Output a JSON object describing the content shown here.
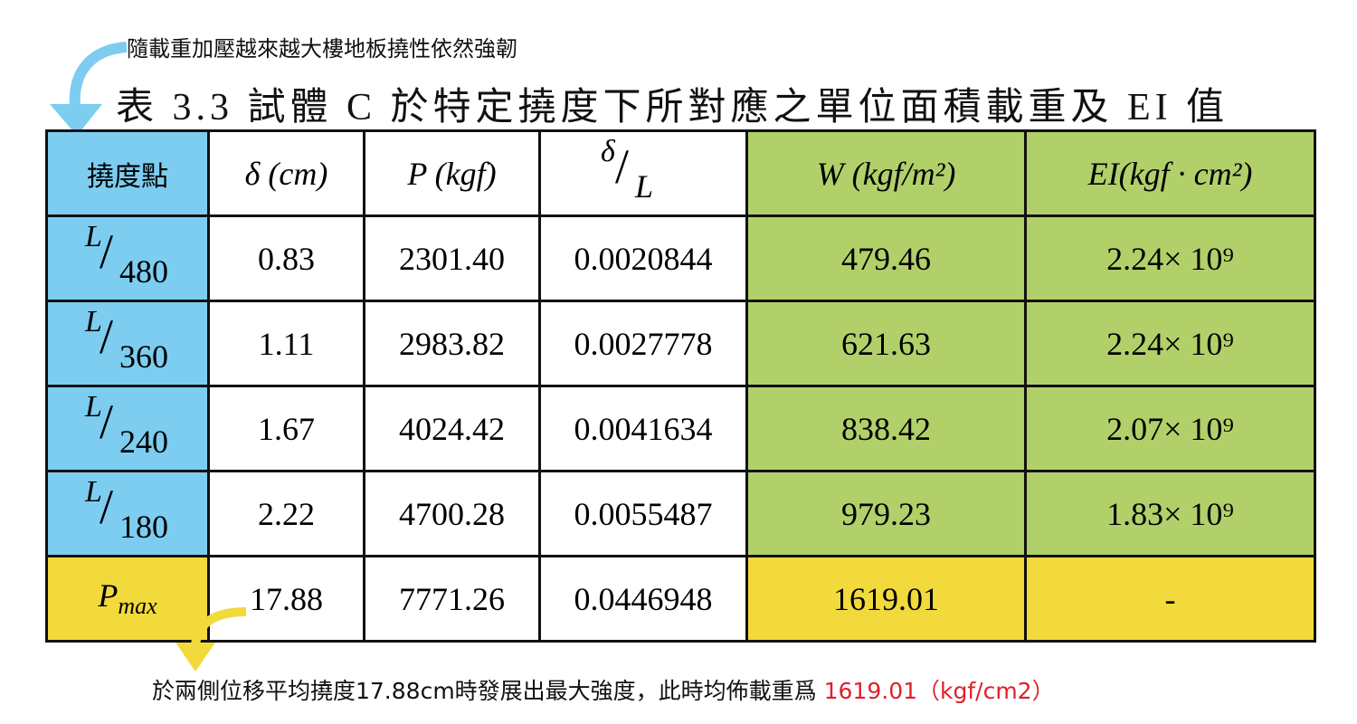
{
  "annotation_top": "隨載重加壓越來越大樓地板撓性依然強韌",
  "title": "表 3.3  試體 C 於特定撓度下所對應之單位面積載重及 EI 值",
  "headers": [
    "撓度點",
    "δ (cm)",
    "P (kgf)",
    "δ/L",
    "W (kgf/m²)",
    "EI(kgf · cm²)"
  ],
  "header_frac": {
    "num": "δ",
    "den": "L"
  },
  "rows": [
    {
      "num": "L",
      "den": "480",
      "delta": "0.83",
      "P": "2301.40",
      "ratio": "0.0020844",
      "W": "479.46",
      "EI": "2.24× 10⁹"
    },
    {
      "num": "L",
      "den": "360",
      "delta": "1.11",
      "P": "2983.82",
      "ratio": "0.0027778",
      "W": "621.63",
      "EI": "2.24× 10⁹"
    },
    {
      "num": "L",
      "den": "240",
      "delta": "1.67",
      "P": "4024.42",
      "ratio": "0.0041634",
      "W": "838.42",
      "EI": "2.07× 10⁹"
    },
    {
      "num": "L",
      "den": "180",
      "delta": "2.22",
      "P": "4700.28",
      "ratio": "0.0055487",
      "W": "979.23",
      "EI": "1.83× 10⁹"
    }
  ],
  "pmax": {
    "label": "P",
    "sub": "max",
    "delta": "17.88",
    "P": "7771.26",
    "ratio": "0.0446948",
    "W": "1619.01",
    "EI": "-"
  },
  "annotation_bottom": {
    "text": "於兩側位移平均撓度17.88cm時發展出最大強度，此時均佈載重爲 ",
    "highlight": "1619.01（kgf/cm2）"
  },
  "colors": {
    "blue": "#7ccdf0",
    "green": "#b2d06a",
    "yellow": "#f2da3c",
    "highlight": "#e0202a"
  }
}
